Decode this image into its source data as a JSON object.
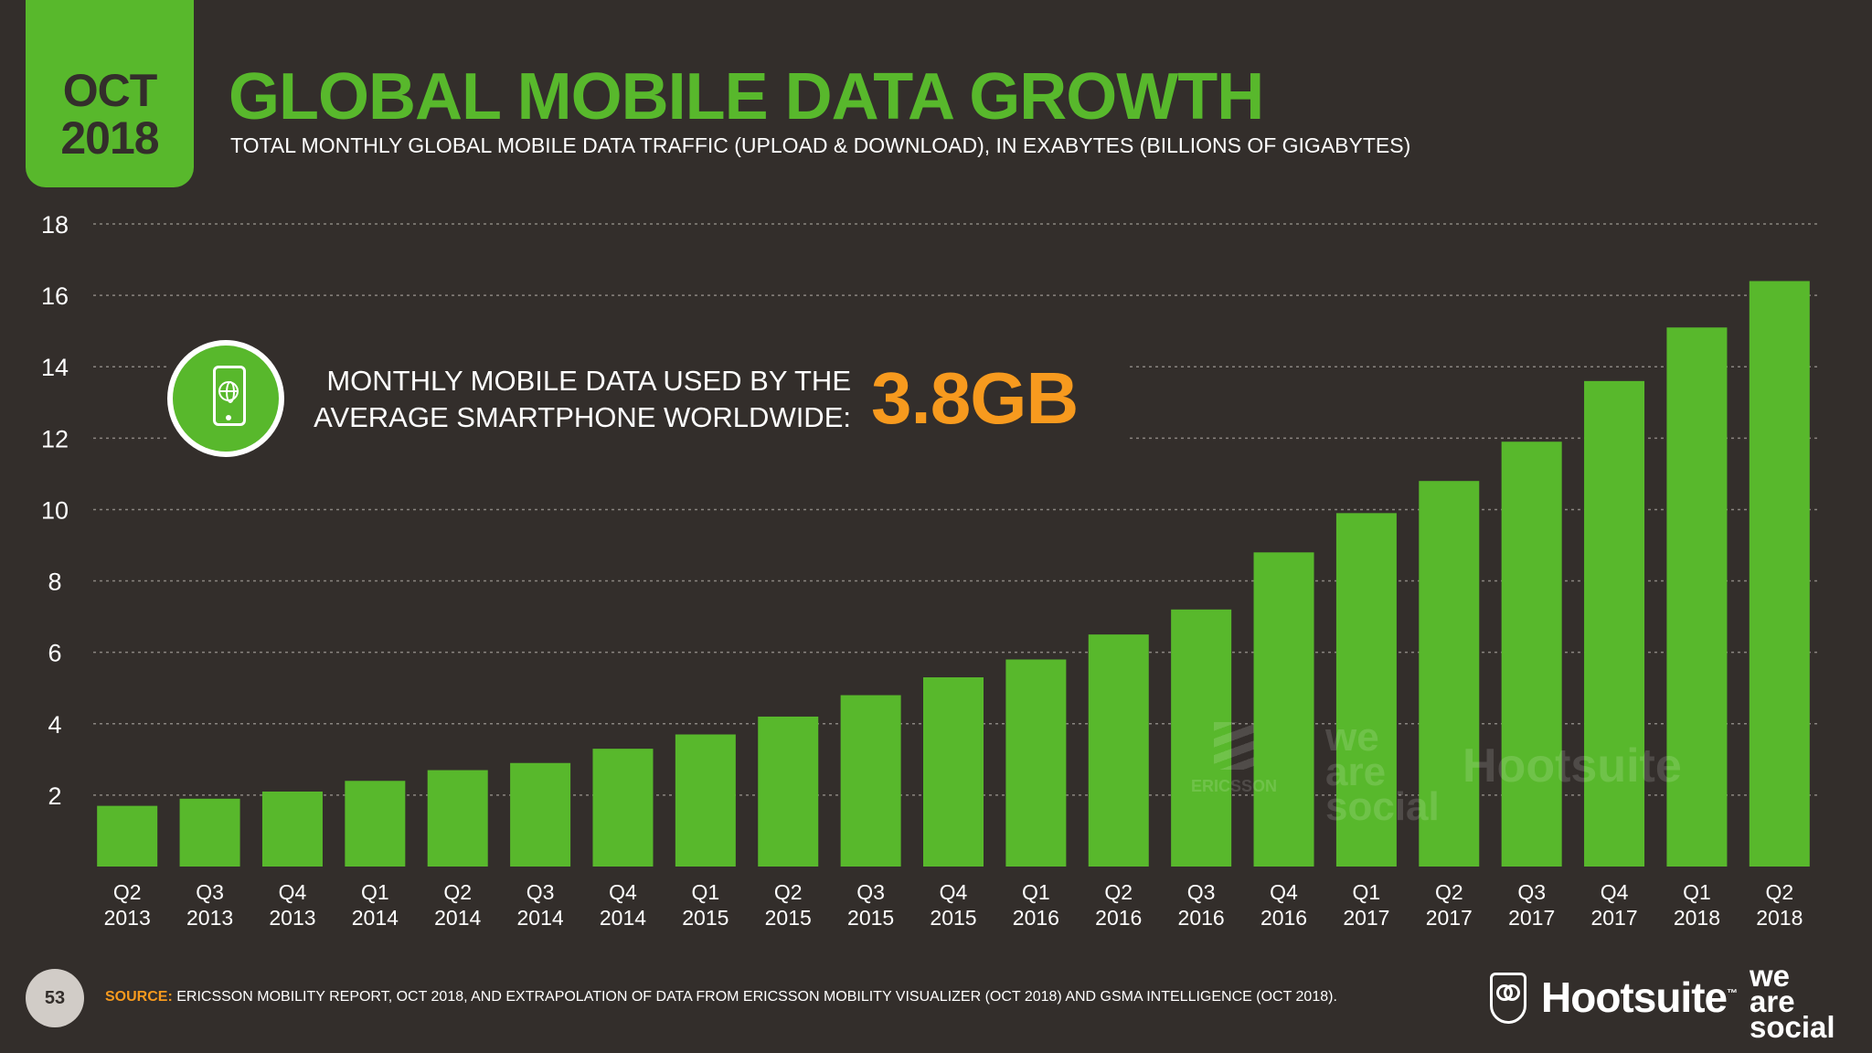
{
  "badge": {
    "month": "OCT",
    "year": "2018"
  },
  "header": {
    "title": "GLOBAL MOBILE DATA GROWTH",
    "subtitle": "TOTAL MONTHLY GLOBAL MOBILE DATA TRAFFIC (UPLOAD & DOWNLOAD), IN EXABYTES (BILLIONS OF GIGABYTES)"
  },
  "callout": {
    "line1": "MONTHLY MOBILE DATA USED BY THE",
    "line2": "AVERAGE SMARTPHONE WORLDWIDE:",
    "value": "3.8GB",
    "icon": "smartphone-globe-icon"
  },
  "watermarks": {
    "ericsson": "ERICSSON",
    "we_are_social": [
      "we",
      "are",
      "social"
    ],
    "hootsuite": "Hootsuite"
  },
  "footer": {
    "page_number": "53",
    "source_label": "SOURCE:",
    "source_text": "ERICSSON MOBILITY REPORT, OCT 2018, AND EXTRAPOLATION OF DATA FROM ERICSSON MOBILITY VISUALIZER (OCT 2018) AND GSMA INTELLIGENCE (OCT 2018).",
    "brand_hootsuite": "Hootsuite",
    "brand_tm": "™",
    "brand_was": [
      "we",
      "are",
      "social"
    ]
  },
  "colors": {
    "background": "#332e2b",
    "bar": "#58b82c",
    "accent_orange": "#f79a1e",
    "gridline": "#8a8580"
  },
  "chart_data": {
    "type": "bar",
    "categories": [
      [
        "Q2",
        "2013"
      ],
      [
        "Q3",
        "2013"
      ],
      [
        "Q4",
        "2013"
      ],
      [
        "Q1",
        "2014"
      ],
      [
        "Q2",
        "2014"
      ],
      [
        "Q3",
        "2014"
      ],
      [
        "Q4",
        "2014"
      ],
      [
        "Q1",
        "2015"
      ],
      [
        "Q2",
        "2015"
      ],
      [
        "Q3",
        "2015"
      ],
      [
        "Q4",
        "2015"
      ],
      [
        "Q1",
        "2016"
      ],
      [
        "Q2",
        "2016"
      ],
      [
        "Q3",
        "2016"
      ],
      [
        "Q4",
        "2016"
      ],
      [
        "Q1",
        "2017"
      ],
      [
        "Q2",
        "2017"
      ],
      [
        "Q3",
        "2017"
      ],
      [
        "Q4",
        "2017"
      ],
      [
        "Q1",
        "2018"
      ],
      [
        "Q2",
        "2018"
      ]
    ],
    "values": [
      1.7,
      1.9,
      2.1,
      2.4,
      2.7,
      2.9,
      3.3,
      3.7,
      4.2,
      4.8,
      5.3,
      5.8,
      6.5,
      7.2,
      8.8,
      9.9,
      10.8,
      11.9,
      13.6,
      15.1,
      16.4
    ],
    "yticks": [
      2,
      4,
      6,
      8,
      10,
      12,
      14,
      16,
      18
    ],
    "ylim": [
      0,
      18
    ],
    "grid": true,
    "legend": "none"
  }
}
